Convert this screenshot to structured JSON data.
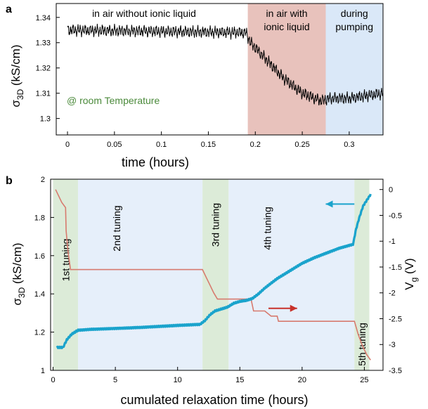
{
  "chart_data": [
    {
      "panel_label": "a",
      "type": "line",
      "xlabel": "time (hours)",
      "ylabel_main": "σ",
      "ylabel_sub": "3D",
      "ylabel_unit": " (kS/cm)",
      "xlim": [
        -0.012,
        0.336
      ],
      "ylim": [
        1.2935,
        1.3455
      ],
      "xticks": [
        0,
        0.05,
        0.1,
        0.15,
        0.2,
        0.25,
        0.3
      ],
      "yticks": [
        1.3,
        1.31,
        1.32,
        1.33,
        1.34
      ],
      "grid": false,
      "annotation": "@ room Temperature",
      "regions": [
        {
          "x0": -0.012,
          "x1": 0.192,
          "label": [
            "in air without ionic liquid"
          ],
          "color": "#ffffff"
        },
        {
          "x0": 0.192,
          "x1": 0.275,
          "label": [
            "in air with",
            "ionic liquid"
          ],
          "color": "#e8c2bc"
        },
        {
          "x0": 0.275,
          "x1": 0.336,
          "label": [
            "during",
            "pumping"
          ],
          "color": "#dae8f8"
        }
      ],
      "series": [
        {
          "color": "#000000",
          "trend": [
            [
              0,
              1.335
            ],
            [
              0.19,
              1.334
            ],
            [
              0.195,
              1.33
            ],
            [
              0.21,
              1.324
            ],
            [
              0.23,
              1.316
            ],
            [
              0.25,
              1.31
            ],
            [
              0.27,
              1.307
            ],
            [
              0.28,
              1.308
            ],
            [
              0.3,
              1.308
            ],
            [
              0.336,
              1.31
            ]
          ],
          "noise_amplitude": 0.0025
        }
      ]
    },
    {
      "panel_label": "b",
      "type": "line",
      "xlabel": "cumulated relaxation time (hours)",
      "ylabel_main": "σ",
      "ylabel_sub": "3D",
      "ylabel_unit": " (kS/cm)",
      "y2label_main": "V",
      "y2label_sub": "g",
      "y2label_unit": " (V)",
      "xlim": [
        -0.2,
        26.5
      ],
      "ylim": [
        1.0,
        2.0
      ],
      "y2lim": [
        -3.5,
        0.2
      ],
      "xticks": [
        0,
        5,
        10,
        15,
        20,
        25
      ],
      "yticks": [
        1,
        1.2,
        1.4,
        1.6,
        1.8,
        2
      ],
      "y2ticks": [
        0,
        -0.5,
        -1,
        -1.5,
        -2,
        -2.5,
        -3,
        -3.5
      ],
      "grid": false,
      "tuning_regions": [
        {
          "x0": 0,
          "x1": 2,
          "label": "1st tuning",
          "color": "#dcebd8"
        },
        {
          "x0": 2,
          "x1": 12,
          "label": "2nd tuning",
          "color": "#e6effa"
        },
        {
          "x0": 12,
          "x1": 14.1,
          "label": "3rd tuning",
          "color": "#dcebd8"
        },
        {
          "x0": 14.1,
          "x1": 24.2,
          "label": "4th tuning",
          "color": "#e6effa"
        },
        {
          "x0": 24.2,
          "x1": 25.4,
          "label": "5th tuning",
          "color": "#dcebd8"
        }
      ],
      "series": [
        {
          "axis": "left",
          "color": "#1aa3cc",
          "x": [
            0.3,
            0.8,
            1.1,
            1.5,
            2.0,
            3,
            5,
            7,
            10,
            11.8,
            12.2,
            12.6,
            13.0,
            13.5,
            14.0,
            14.5,
            15.0,
            15.5,
            16.0,
            16.5,
            17.0,
            18.0,
            19.0,
            20.0,
            21.0,
            22.0,
            23.0,
            24.1,
            24.3,
            24.6,
            24.9,
            25.2,
            25.5
          ],
          "y": [
            1.12,
            1.12,
            1.16,
            1.19,
            1.21,
            1.215,
            1.22,
            1.225,
            1.235,
            1.24,
            1.26,
            1.29,
            1.31,
            1.32,
            1.33,
            1.35,
            1.36,
            1.365,
            1.375,
            1.4,
            1.43,
            1.48,
            1.52,
            1.56,
            1.59,
            1.615,
            1.64,
            1.66,
            1.73,
            1.8,
            1.86,
            1.89,
            1.92
          ]
        },
        {
          "axis": "right",
          "color": "#d77a6e",
          "x": [
            0.2,
            0.7,
            1.0,
            1.05,
            1.2,
            1.4,
            2,
            6,
            12.0,
            12.3,
            12.6,
            12.9,
            13.2,
            14.0,
            15.0,
            15.9,
            16.1,
            17,
            17.5,
            18,
            18.1,
            20,
            24.2,
            24.5,
            24.8,
            25.0,
            25.2,
            25.5
          ],
          "y": [
            0.0,
            -0.25,
            -0.35,
            -0.8,
            -1.2,
            -1.55,
            -1.55,
            -1.55,
            -1.55,
            -1.7,
            -1.85,
            -2.0,
            -2.12,
            -2.12,
            -2.12,
            -2.12,
            -2.35,
            -2.35,
            -2.45,
            -2.45,
            -2.55,
            -2.55,
            -2.55,
            -2.8,
            -3.0,
            -3.1,
            -3.2,
            -3.3
          ]
        }
      ],
      "arrows": [
        {
          "direction": "left",
          "color": "#1aa3cc",
          "x0": 24.2,
          "x1": 21.9,
          "y": 1.87
        },
        {
          "direction": "right",
          "color": "#c8312a",
          "x0": 17.3,
          "x1": 19.6,
          "y_right": -2.3
        }
      ]
    }
  ]
}
